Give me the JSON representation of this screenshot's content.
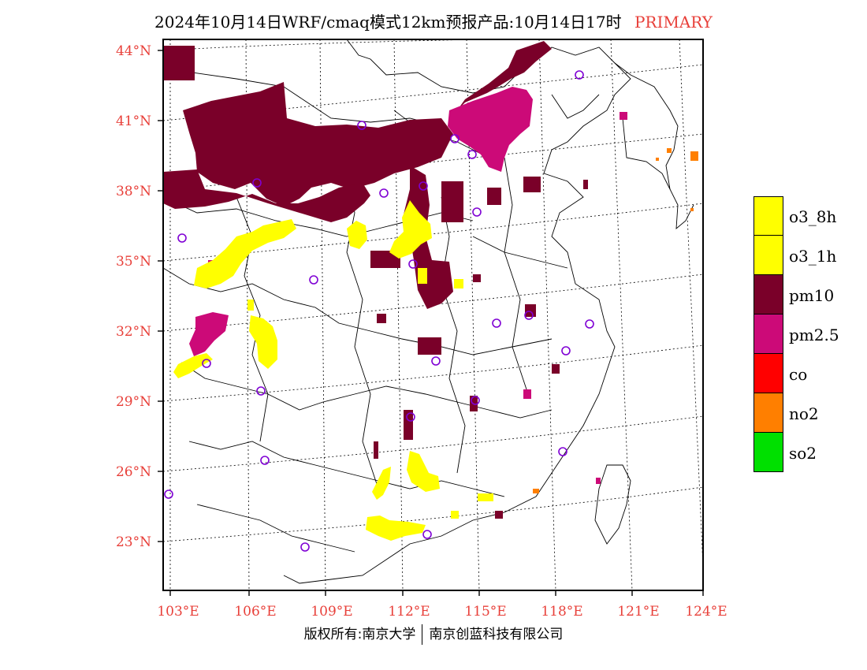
{
  "title": {
    "main": "2024年10月14日WRF/cmaq模式12km预报产品:10月14日17时",
    "tag": "PRIMARY",
    "tag_color": "#e8403a"
  },
  "axes": {
    "lat_labels": [
      "44°N",
      "41°N",
      "38°N",
      "35°N",
      "32°N",
      "29°N",
      "26°N",
      "23°N"
    ],
    "lon_labels": [
      "103°E",
      "106°E",
      "109°E",
      "112°E",
      "115°E",
      "118°E",
      "121°E",
      "124°E"
    ],
    "label_color": "#e8403a"
  },
  "legend": [
    {
      "label": "o3_8h",
      "color": "#ffff00"
    },
    {
      "label": "o3_1h",
      "color": "#ffff00"
    },
    {
      "label": "pm10",
      "color": "#7a0029"
    },
    {
      "label": "pm2.5",
      "color": "#cc0a78"
    },
    {
      "label": "co",
      "color": "#ff0000"
    },
    {
      "label": "no2",
      "color": "#ff7f00"
    },
    {
      "label": "so2",
      "color": "#00e000"
    }
  ],
  "footer": {
    "left": "版权所有:南京大学",
    "right": "南京创蓝科技有限公司"
  }
}
